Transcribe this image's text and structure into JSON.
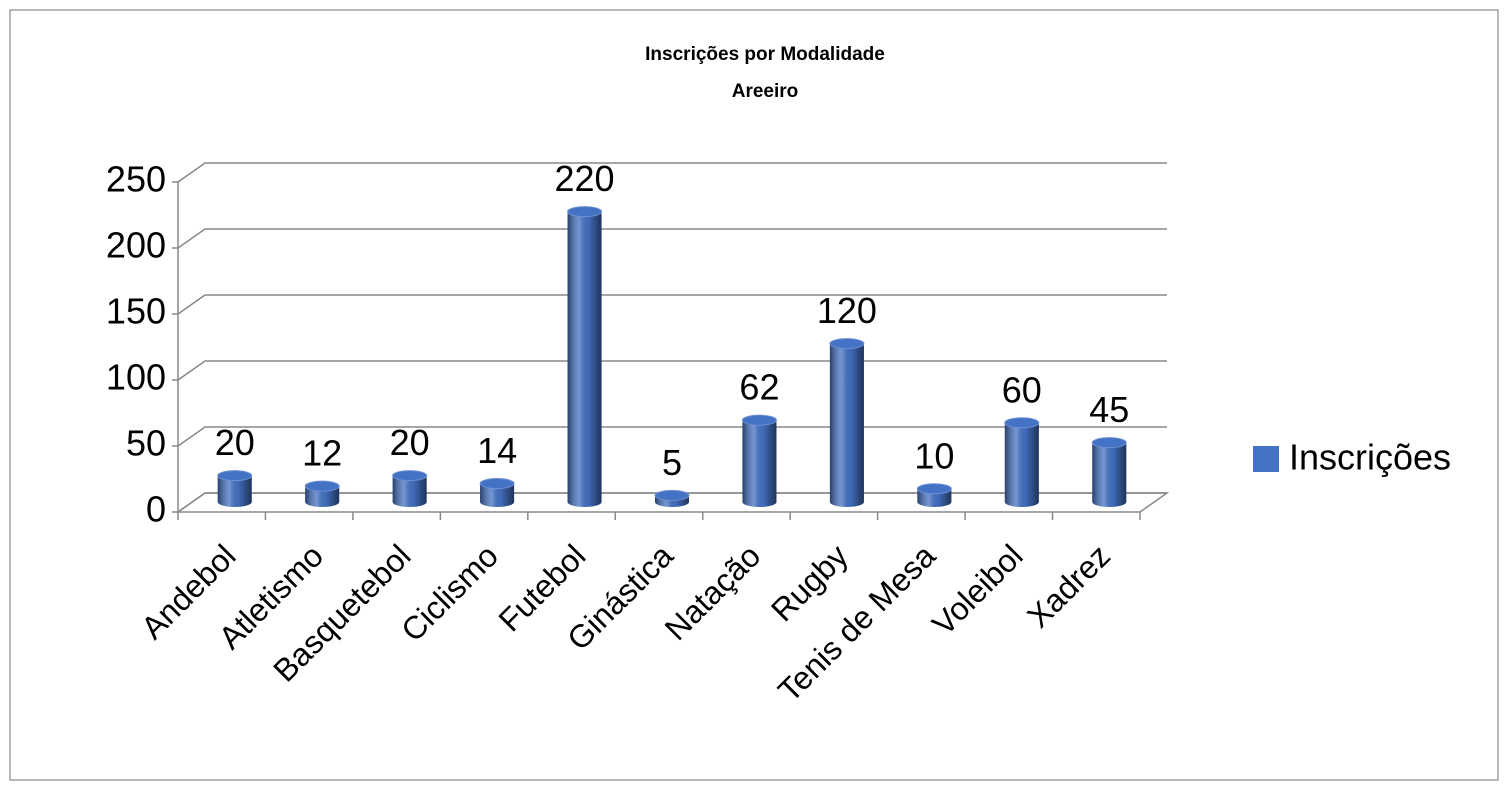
{
  "chart_data": {
    "type": "bar",
    "title": "Inscrições por Modalidade",
    "subtitle": "Areeiro",
    "categories": [
      "Andebol",
      "Atletismo",
      "Basquetebol",
      "Ciclismo",
      "Futebol",
      "Ginástica",
      "Natação",
      "Rugby",
      "Tenis de Mesa",
      "Voleibol",
      "Xadrez"
    ],
    "series": [
      {
        "name": "Inscrições",
        "color": "#4472c4",
        "values": [
          20,
          12,
          20,
          14,
          220,
          5,
          62,
          120,
          10,
          60,
          45
        ]
      }
    ],
    "ylim": [
      0,
      250
    ],
    "yticks": [
      0,
      50,
      100,
      150,
      200,
      250
    ],
    "grid": true,
    "legend": "right"
  }
}
